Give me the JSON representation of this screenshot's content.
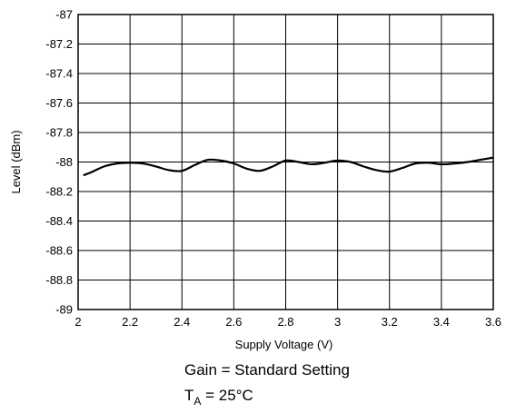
{
  "chart_data": {
    "type": "line",
    "title": "",
    "xlabel": "Supply Voltage (V)",
    "ylabel": "Level (dBm)",
    "xlim": [
      2,
      3.6
    ],
    "ylim": [
      -89,
      -87
    ],
    "xticks": [
      "2",
      "2.2",
      "2.4",
      "2.6",
      "2.8",
      "3",
      "3.2",
      "3.4",
      "3.6"
    ],
    "yticks": [
      "-87",
      "-87.2",
      "-87.4",
      "-87.6",
      "-87.8",
      "-88",
      "-88.2",
      "-88.4",
      "-88.6",
      "-88.8",
      "-89"
    ],
    "grid": true,
    "legend": "none",
    "series": [
      {
        "color": "#000000",
        "x": [
          2.02,
          2.05,
          2.1,
          2.15,
          2.2,
          2.25,
          2.3,
          2.35,
          2.4,
          2.45,
          2.5,
          2.55,
          2.6,
          2.65,
          2.7,
          2.75,
          2.8,
          2.85,
          2.9,
          2.95,
          3.0,
          3.05,
          3.1,
          3.15,
          3.2,
          3.25,
          3.3,
          3.35,
          3.4,
          3.45,
          3.5,
          3.55,
          3.6
        ],
        "y": [
          -88.09,
          -88.07,
          -88.03,
          -88.01,
          -88.005,
          -88.01,
          -88.03,
          -88.055,
          -88.06,
          -88.02,
          -87.985,
          -87.99,
          -88.01,
          -88.045,
          -88.06,
          -88.03,
          -87.99,
          -88.0,
          -88.015,
          -88.005,
          -87.99,
          -88.0,
          -88.03,
          -88.055,
          -88.065,
          -88.04,
          -88.01,
          -88.005,
          -88.015,
          -88.01,
          -88.0,
          -87.985,
          -87.97
        ]
      }
    ],
    "annotations": {
      "gain": "Gain = Standard Setting",
      "temp_main": "T",
      "temp_sub": "A",
      "temp_value": " = 25°C"
    }
  }
}
